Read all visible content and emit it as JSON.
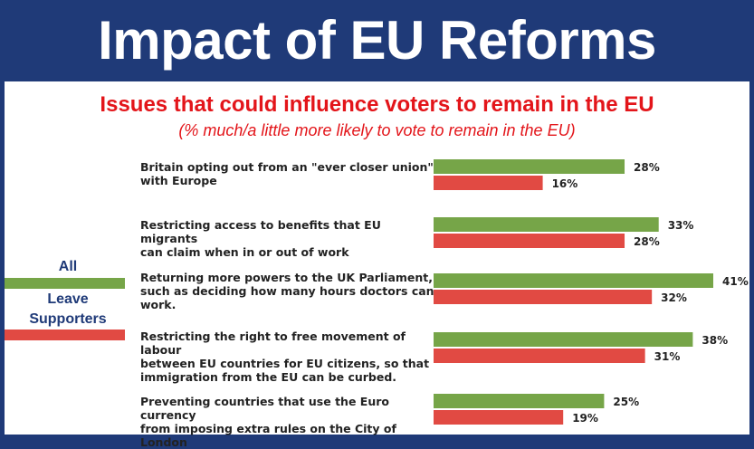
{
  "header": {
    "title": "Impact of EU Reforms"
  },
  "colors": {
    "banner": "#1f3a78",
    "all": "#76a548",
    "leave": "#e14a43",
    "accent_text": "#e3151a"
  },
  "legend": {
    "items": [
      {
        "label": "All",
        "color": "#76a548"
      },
      {
        "label": "Leave\nSupporters",
        "color": "#e14a43"
      }
    ],
    "placement": "left"
  },
  "chart_data": {
    "type": "bar",
    "orientation": "horizontal",
    "title": "Issues that could influence voters to remain in the EU",
    "subtitle": "(% much/a little more likely to vote to remain in the EU)",
    "categories": [
      "Britain opting out from an \"ever closer union\" with Europe",
      "Restricting access to benefits that EU migrants can claim when in or out of work",
      "Returning more powers to the UK Parliament, such as deciding how many hours doctors can work.",
      "Restricting the right to free movement of labour between EU countries for EU citizens, so that immigration from the EU can be curbed.",
      "Preventing countries that use the Euro currency from imposing extra rules on the City of London"
    ],
    "category_lines": [
      [
        "Britain opting out from an \"ever closer union\"",
        "with Europe"
      ],
      [
        "Restricting access to benefits that EU migrants",
        "can claim when in or out of work"
      ],
      [
        "Returning more powers to the UK Parliament,",
        "such as deciding how many hours doctors can",
        "work."
      ],
      [
        "Restricting the right to free movement of labour",
        "between EU countries for EU citizens, so that",
        "immigration from the EU can be curbed."
      ],
      [
        "Preventing countries that use the Euro currency",
        "from imposing extra rules on the City of London"
      ]
    ],
    "series": [
      {
        "name": "All",
        "values": [
          28,
          33,
          41,
          38,
          25
        ]
      },
      {
        "name": "Leave Supporters",
        "values": [
          16,
          28,
          32,
          31,
          19
        ]
      }
    ],
    "value_labels": [
      [
        "28%",
        "33%",
        "41%",
        "38%",
        "25%"
      ],
      [
        "16%",
        "28%",
        "32%",
        "31%",
        "19%"
      ]
    ],
    "xlim": [
      0,
      41
    ],
    "grid": false
  }
}
